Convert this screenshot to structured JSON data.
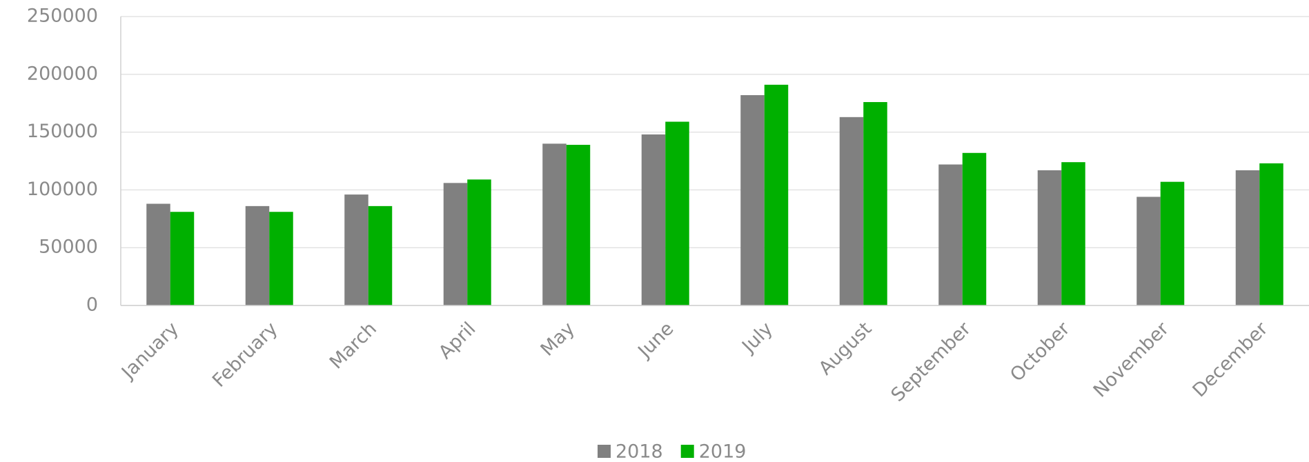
{
  "chart_data": {
    "type": "bar",
    "categories": [
      "January",
      "February",
      "March",
      "April",
      "May",
      "June",
      "July",
      "August",
      "September",
      "October",
      "November",
      "December"
    ],
    "series": [
      {
        "name": "2018",
        "color": "#808080",
        "values": [
          88000,
          86000,
          96000,
          106000,
          140000,
          148000,
          182000,
          163000,
          122000,
          117000,
          94000,
          117000
        ]
      },
      {
        "name": "2019",
        "color": "#00b000",
        "values": [
          81000,
          81000,
          86000,
          109000,
          139000,
          159000,
          191000,
          176000,
          132000,
          124000,
          107000,
          123000
        ]
      }
    ],
    "ylim": [
      0,
      250000
    ],
    "yticks": [
      0,
      50000,
      100000,
      150000,
      200000,
      250000
    ],
    "grid": true,
    "legend": "bottom"
  }
}
